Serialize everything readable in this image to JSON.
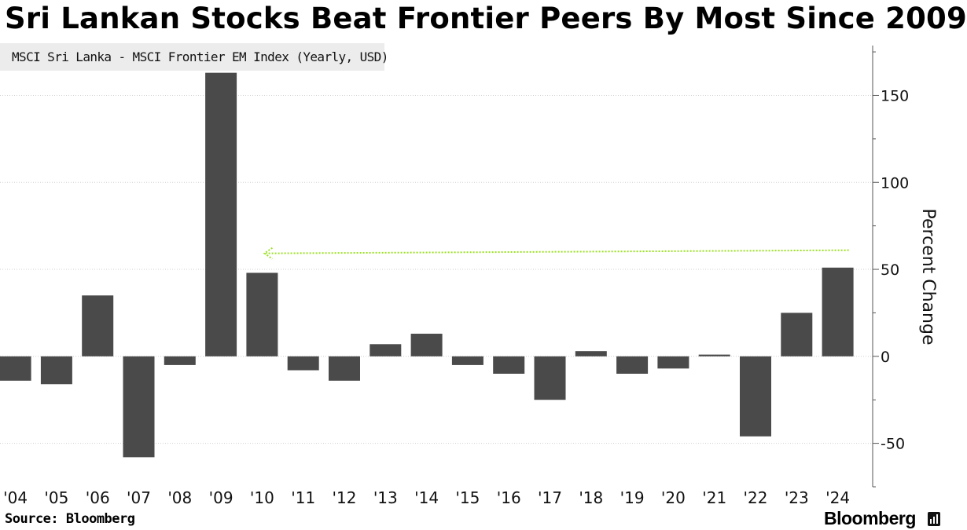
{
  "title": "Sri Lankan Stocks Beat Frontier Peers By Most Since 2009",
  "source": "Source: Bloomberg",
  "brand": "Bloomberg",
  "colors": {
    "bar": "#4a4a4a",
    "arrow": "#9be021",
    "legend_bg": "#ececec",
    "grid": "#cfcfcf"
  },
  "chart_data": {
    "type": "bar",
    "legend": [
      "MSCI Sri Lanka - MSCI Frontier EM Index (Yearly, USD)"
    ],
    "categories": [
      "'04",
      "'05",
      "'06",
      "'07",
      "'08",
      "'09",
      "'10",
      "'11",
      "'12",
      "'13",
      "'14",
      "'15",
      "'16",
      "'17",
      "'18",
      "'19",
      "'20",
      "'21",
      "'22",
      "'23",
      "'24"
    ],
    "series": [
      {
        "name": "MSCI Sri Lanka - MSCI Frontier EM Index (Yearly, USD)",
        "values": [
          -14,
          -16,
          35,
          -58,
          -5,
          163,
          48,
          -8,
          -14,
          7,
          13,
          -5,
          -10,
          -25,
          3,
          -10,
          -7,
          1,
          -46,
          25,
          51
        ]
      }
    ],
    "ylabel": "Percent Change",
    "ylim": [
      -75,
      180
    ],
    "yticks": [
      -50,
      0,
      50,
      100,
      150
    ],
    "grid": true,
    "legend_position": "top-left",
    "annotation": {
      "type": "arrow",
      "from_category": "'24",
      "to_category": "'10",
      "level": 61
    }
  }
}
